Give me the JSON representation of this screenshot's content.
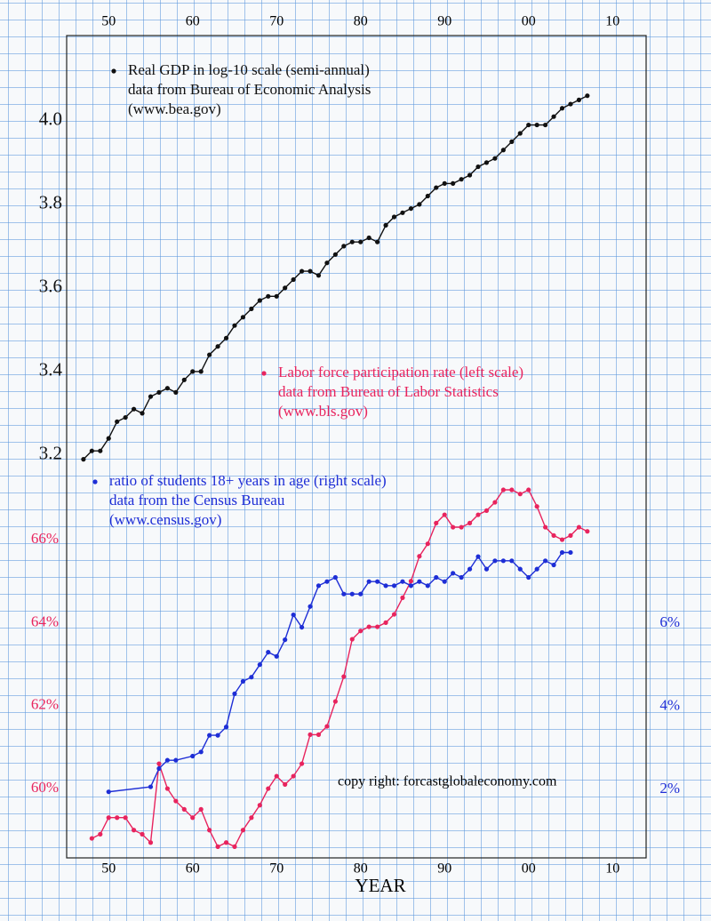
{
  "chart_data": {
    "type": "line",
    "x_label": "YEAR",
    "credit": "copy right: forcastglobaleconomy.com",
    "xlim": [
      1945,
      2014
    ],
    "xticks": [
      {
        "value": 1950,
        "label": "50"
      },
      {
        "value": 1960,
        "label": "60"
      },
      {
        "value": 1970,
        "label": "70"
      },
      {
        "value": 1980,
        "label": "80"
      },
      {
        "value": 1990,
        "label": "90"
      },
      {
        "value": 2000,
        "label": "00"
      },
      {
        "value": 2010,
        "label": "10"
      }
    ],
    "ylim": [
      2.236,
      4.204
    ],
    "yticks": [
      3.2,
      3.4,
      3.6,
      3.8,
      {
        "value": 4,
        "label": "4.0"
      }
    ],
    "y2lim": [
      58.33,
      78.15
    ],
    "y2ticks": [
      {
        "value": 60,
        "label": "60%"
      },
      {
        "value": 62,
        "label": "62%"
      },
      {
        "value": 64,
        "label": "64%"
      },
      {
        "value": 66,
        "label": "66%"
      }
    ],
    "y3lim": [
      0.35,
      20.14
    ],
    "y3ticks": [
      {
        "value": 2,
        "label": "2%"
      },
      {
        "value": 4,
        "label": "4%"
      },
      {
        "value": 6,
        "label": "6%"
      }
    ],
    "grid": false,
    "series": [
      {
        "name": "Real GDP in log-10 scale (semi-annual)",
        "source": [
          "data from Bureau of Economic Analysis",
          "(www.bea.gov)"
        ],
        "color": "#111111",
        "axis": "y",
        "x": [
          1947,
          1948,
          1949,
          1950,
          1951,
          1952,
          1953,
          1954,
          1955,
          1956,
          1957,
          1958,
          1959,
          1960,
          1961,
          1962,
          1963,
          1964,
          1965,
          1966,
          1967,
          1968,
          1969,
          1970,
          1971,
          1972,
          1973,
          1974,
          1975,
          1976,
          1977,
          1978,
          1979,
          1980,
          1981,
          1982,
          1983,
          1984,
          1985,
          1986,
          1987,
          1988,
          1989,
          1990,
          1991,
          1992,
          1993,
          1994,
          1995,
          1996,
          1997,
          1998,
          1999,
          2000,
          2001,
          2002,
          2003,
          2004,
          2005,
          2006,
          2007
        ],
        "values": [
          3.19,
          3.21,
          3.21,
          3.24,
          3.28,
          3.29,
          3.31,
          3.3,
          3.34,
          3.35,
          3.36,
          3.35,
          3.38,
          3.4,
          3.4,
          3.44,
          3.46,
          3.48,
          3.51,
          3.53,
          3.55,
          3.57,
          3.58,
          3.58,
          3.6,
          3.62,
          3.64,
          3.64,
          3.63,
          3.66,
          3.68,
          3.7,
          3.71,
          3.71,
          3.72,
          3.71,
          3.75,
          3.77,
          3.78,
          3.79,
          3.8,
          3.82,
          3.84,
          3.85,
          3.85,
          3.86,
          3.87,
          3.89,
          3.9,
          3.91,
          3.93,
          3.95,
          3.97,
          3.99,
          3.99,
          3.99,
          4.01,
          4.03,
          4.04,
          4.05,
          4.06
        ]
      },
      {
        "name": "Labor force participation rate (left scale)",
        "source": [
          "data from Bureau of Labor Statistics",
          "(www.bls.gov)"
        ],
        "color": "#e8245e",
        "axis": "y2",
        "x": [
          1948,
          1949,
          1950,
          1951,
          1952,
          1953,
          1954,
          1955,
          1956,
          1957,
          1958,
          1959,
          1960,
          1961,
          1962,
          1963,
          1964,
          1965,
          1966,
          1967,
          1968,
          1969,
          1970,
          1971,
          1972,
          1973,
          1974,
          1975,
          1976,
          1977,
          1978,
          1979,
          1980,
          1981,
          1982,
          1983,
          1984,
          1985,
          1986,
          1987,
          1988,
          1989,
          1990,
          1991,
          1992,
          1993,
          1994,
          1995,
          1996,
          1997,
          1998,
          1999,
          2000,
          2001,
          2002,
          2003,
          2004,
          2005,
          2006,
          2007
        ],
        "values": [
          58.8,
          58.9,
          59.3,
          59.3,
          59.3,
          59.0,
          58.9,
          58.7,
          60.6,
          60.0,
          59.7,
          59.5,
          59.3,
          59.5,
          59.0,
          58.6,
          58.7,
          58.6,
          59.0,
          59.3,
          59.6,
          60.0,
          60.3,
          60.1,
          60.3,
          60.6,
          61.3,
          61.3,
          61.5,
          62.1,
          62.7,
          63.6,
          63.8,
          63.9,
          63.9,
          64.0,
          64.2,
          64.6,
          65.0,
          65.6,
          65.9,
          66.4,
          66.6,
          66.3,
          66.3,
          66.4,
          66.6,
          66.7,
          66.9,
          67.2,
          67.2,
          67.1,
          67.2,
          66.8,
          66.3,
          66.1,
          66.0,
          66.1,
          66.3,
          66.2
        ]
      },
      {
        "name": "ratio of students 18+ years in age (right scale)",
        "source": [
          "data from the Census Bureau",
          "(www.census.gov)"
        ],
        "color": "#1e2ed6",
        "axis": "y3",
        "x": [
          1950,
          1955,
          1956,
          1957,
          1958,
          1960,
          1961,
          1962,
          1963,
          1964,
          1965,
          1966,
          1967,
          1968,
          1969,
          1970,
          1971,
          1972,
          1973,
          1974,
          1975,
          1976,
          1977,
          1978,
          1979,
          1980,
          1981,
          1982,
          1983,
          1984,
          1985,
          1986,
          1987,
          1988,
          1989,
          1990,
          1991,
          1992,
          1993,
          1994,
          1995,
          1996,
          1997,
          1998,
          1999,
          2000,
          2001,
          2002,
          2003,
          2004,
          2005
        ],
        "values": [
          1.94,
          2.06,
          2.5,
          2.7,
          2.7,
          2.8,
          2.9,
          3.3,
          3.3,
          3.5,
          4.3,
          4.6,
          4.7,
          5.0,
          5.3,
          5.2,
          5.6,
          6.2,
          5.9,
          6.4,
          6.9,
          7.0,
          7.1,
          6.7,
          6.7,
          6.7,
          7.0,
          7.0,
          6.9,
          6.9,
          7.0,
          6.9,
          7.0,
          6.9,
          7.1,
          7.0,
          7.2,
          7.1,
          7.3,
          7.6,
          7.3,
          7.5,
          7.5,
          7.5,
          7.3,
          7.1,
          7.3,
          7.5,
          7.4,
          7.7,
          7.7
        ]
      }
    ]
  }
}
